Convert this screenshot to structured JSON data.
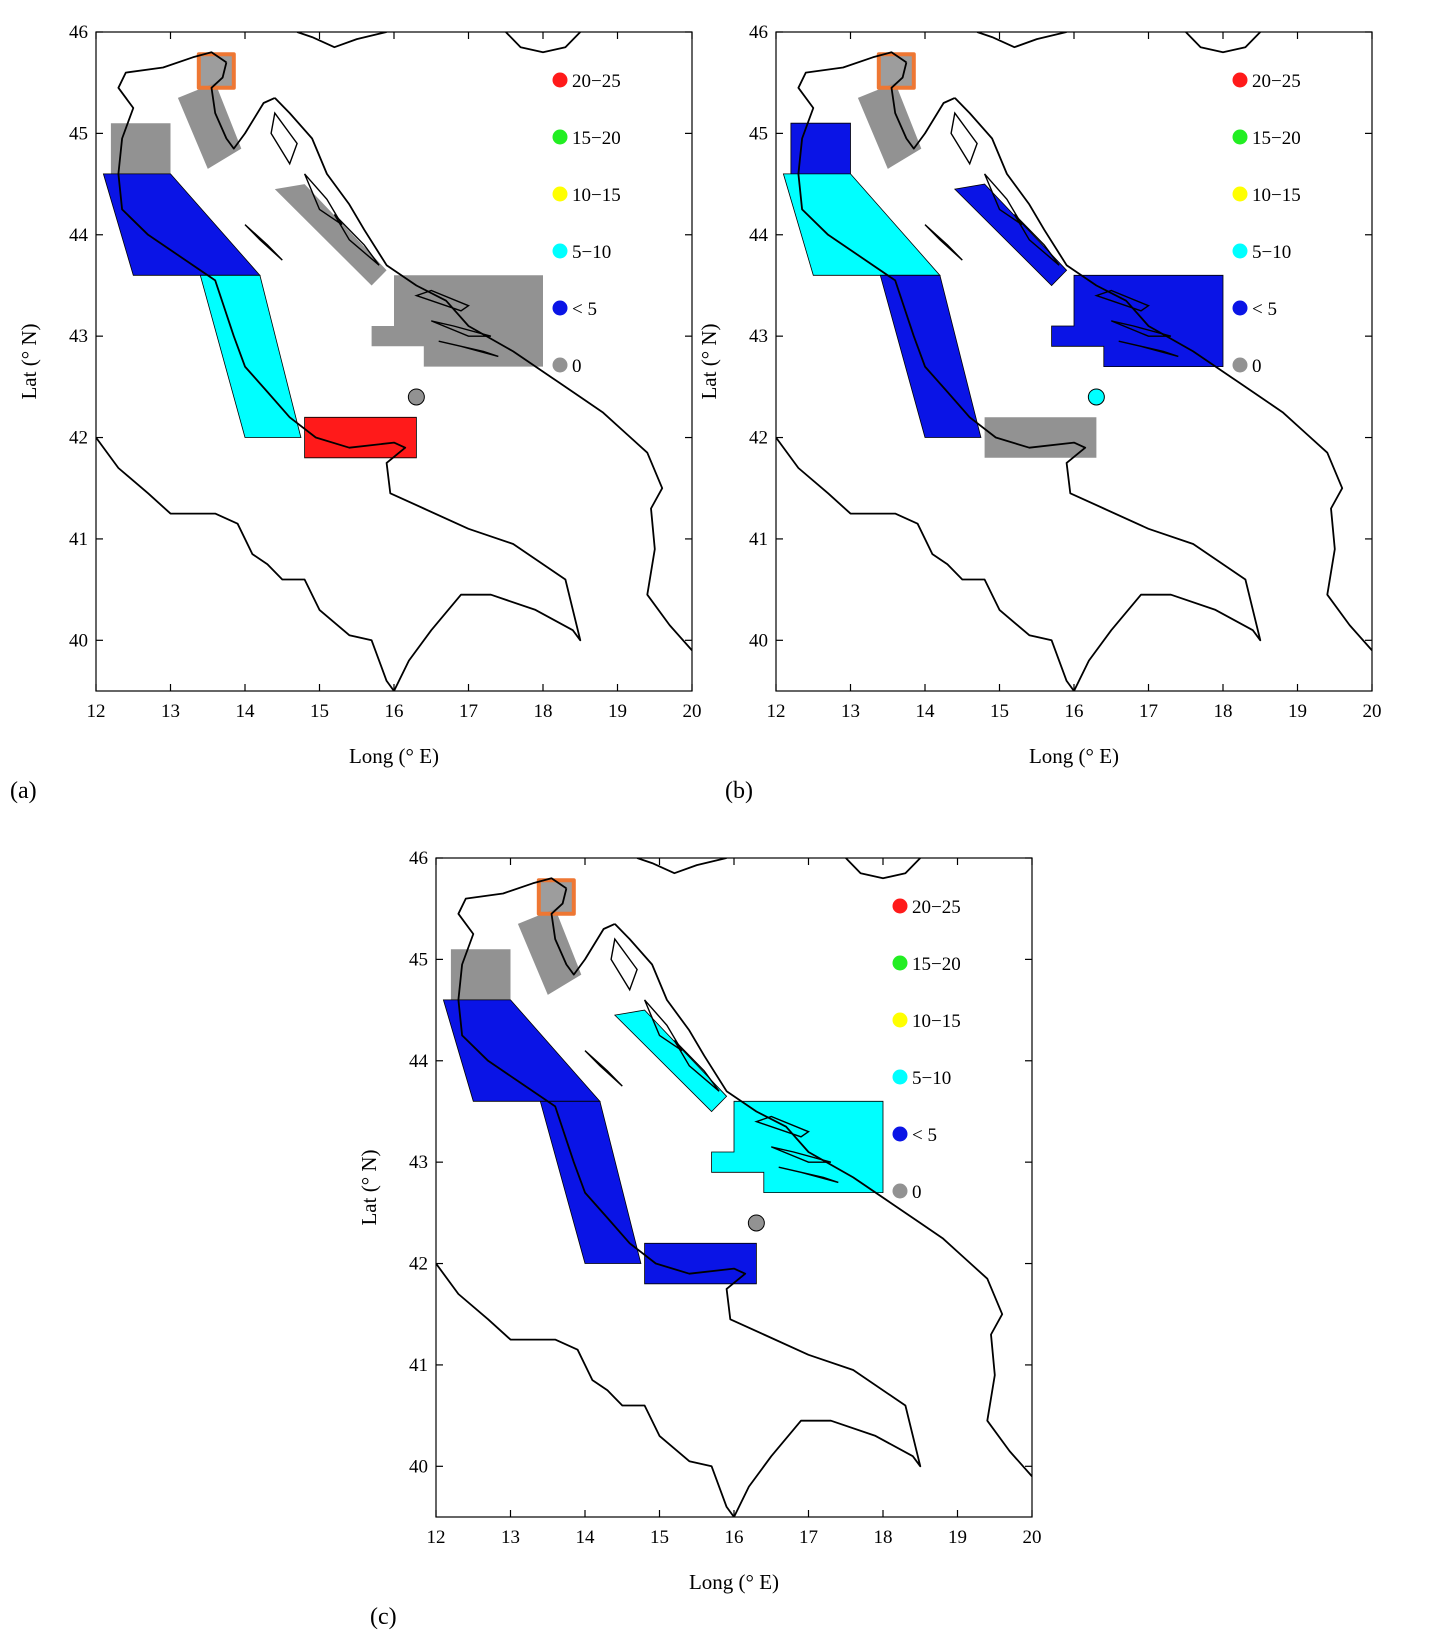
{
  "colors": {
    "red": "#ff1a1a",
    "green": "#22ee22",
    "yellow": "#ffff00",
    "cyan": "#00ffff",
    "blue": "#0a14e6",
    "gray": "#929292",
    "orange": "#ee7733"
  },
  "axes": {
    "x_label": "Long (° E)",
    "y_label": "Lat (° N)",
    "xlim": [
      12,
      20
    ],
    "ylim": [
      39.5,
      46
    ],
    "x_ticks": [
      "12",
      "13",
      "14",
      "15",
      "16",
      "17",
      "18",
      "19",
      "20"
    ],
    "y_ticks": [
      "40",
      "41",
      "42",
      "43",
      "44",
      "45",
      "46"
    ]
  },
  "legend": [
    {
      "label": "20−25",
      "color": "red"
    },
    {
      "label": "15−20",
      "color": "green"
    },
    {
      "label": "10−15",
      "color": "yellow"
    },
    {
      "label": "5−10",
      "color": "cyan"
    },
    {
      "label": "< 5",
      "color": "blue"
    },
    {
      "label": "0",
      "color": "gray"
    }
  ],
  "panels": [
    {
      "label": "(a)",
      "zones": [
        {
          "id": "z1",
          "color": "gray"
        },
        {
          "id": "z2",
          "color": "gray"
        },
        {
          "id": "z3",
          "color": "blue"
        },
        {
          "id": "z4",
          "color": "cyan"
        },
        {
          "id": "z5",
          "color": "red"
        },
        {
          "id": "z6",
          "color": "gray"
        },
        {
          "id": "z7",
          "color": "gray"
        },
        {
          "id": "z8",
          "color": "gray"
        },
        {
          "id": "z9",
          "color": "orange"
        }
      ]
    },
    {
      "label": "(b)",
      "zones": [
        {
          "id": "z1",
          "color": "blue"
        },
        {
          "id": "z2",
          "color": "gray"
        },
        {
          "id": "z3",
          "color": "cyan"
        },
        {
          "id": "z4",
          "color": "blue"
        },
        {
          "id": "z5",
          "color": "gray"
        },
        {
          "id": "z6",
          "color": "blue"
        },
        {
          "id": "z7",
          "color": "blue"
        },
        {
          "id": "z8",
          "color": "cyan"
        },
        {
          "id": "z9",
          "color": "orange"
        }
      ]
    },
    {
      "label": "(c)",
      "zones": [
        {
          "id": "z1",
          "color": "gray"
        },
        {
          "id": "z2",
          "color": "gray"
        },
        {
          "id": "z3",
          "color": "blue"
        },
        {
          "id": "z4",
          "color": "blue"
        },
        {
          "id": "z5",
          "color": "blue"
        },
        {
          "id": "z6",
          "color": "cyan"
        },
        {
          "id": "z7",
          "color": "cyan"
        },
        {
          "id": "z8",
          "color": "gray"
        },
        {
          "id": "z9",
          "color": "orange"
        }
      ]
    }
  ]
}
